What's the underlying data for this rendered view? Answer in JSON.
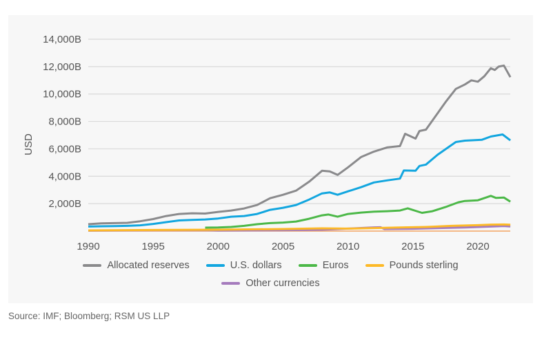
{
  "chart_data": {
    "type": "line",
    "xlabel": "",
    "ylabel": "USD",
    "xlim": [
      1990,
      2022.5
    ],
    "ylim": [
      0,
      14000
    ],
    "x_ticks": [
      "1990",
      "1995",
      "2000",
      "2005",
      "2010",
      "2015",
      "2020"
    ],
    "y_ticks": [
      "2,000B",
      "4,000B",
      "6,000B",
      "8,000B",
      "10,000B",
      "12,000B",
      "14,000B"
    ],
    "grid": true,
    "legend_position": "bottom",
    "series": [
      {
        "name": "Allocated reserves",
        "color": "#8a8a8c",
        "points": [
          [
            1990,
            500
          ],
          [
            1991,
            560
          ],
          [
            1992,
            580
          ],
          [
            1993,
            600
          ],
          [
            1994,
            720
          ],
          [
            1995,
            880
          ],
          [
            1996,
            1100
          ],
          [
            1997,
            1250
          ],
          [
            1998,
            1300
          ],
          [
            1999,
            1280
          ],
          [
            2000,
            1400
          ],
          [
            2001,
            1500
          ],
          [
            2002,
            1650
          ],
          [
            2003,
            1900
          ],
          [
            2004,
            2400
          ],
          [
            2005,
            2650
          ],
          [
            2006,
            2950
          ],
          [
            2007,
            3600
          ],
          [
            2008,
            4400
          ],
          [
            2008.6,
            4350
          ],
          [
            2009.2,
            4100
          ],
          [
            2010,
            4650
          ],
          [
            2011,
            5400
          ],
          [
            2012,
            5800
          ],
          [
            2013,
            6100
          ],
          [
            2014,
            6200
          ],
          [
            2014.4,
            7100
          ],
          [
            2015.2,
            6750
          ],
          [
            2015.5,
            7300
          ],
          [
            2016,
            7400
          ],
          [
            2016.8,
            8460
          ],
          [
            2017.5,
            9400
          ],
          [
            2018.3,
            10370
          ],
          [
            2019,
            10700
          ],
          [
            2019.5,
            11000
          ],
          [
            2020,
            10900
          ],
          [
            2020.5,
            11300
          ],
          [
            2021,
            11880
          ],
          [
            2021.3,
            11750
          ],
          [
            2021.6,
            12000
          ],
          [
            2022,
            12080
          ],
          [
            2022.5,
            11230
          ]
        ]
      },
      {
        "name": "U.S. dollars",
        "color": "#12a6df",
        "points": [
          [
            1990,
            330
          ],
          [
            1991,
            350
          ],
          [
            1992,
            360
          ],
          [
            1993,
            380
          ],
          [
            1994,
            420
          ],
          [
            1995,
            520
          ],
          [
            1996,
            650
          ],
          [
            1997,
            780
          ],
          [
            1998,
            820
          ],
          [
            1999,
            850
          ],
          [
            2000,
            920
          ],
          [
            2001,
            1050
          ],
          [
            2002,
            1100
          ],
          [
            2003,
            1250
          ],
          [
            2004,
            1550
          ],
          [
            2005,
            1700
          ],
          [
            2006,
            1900
          ],
          [
            2007,
            2300
          ],
          [
            2008,
            2750
          ],
          [
            2008.6,
            2820
          ],
          [
            2009.2,
            2650
          ],
          [
            2010,
            2900
          ],
          [
            2011,
            3200
          ],
          [
            2012,
            3550
          ],
          [
            2013,
            3700
          ],
          [
            2014,
            3830
          ],
          [
            2014.3,
            4420
          ],
          [
            2015.2,
            4400
          ],
          [
            2015.5,
            4750
          ],
          [
            2016,
            4850
          ],
          [
            2016.9,
            5570
          ],
          [
            2018.3,
            6500
          ],
          [
            2019,
            6600
          ],
          [
            2020.3,
            6660
          ],
          [
            2021,
            6900
          ],
          [
            2021.9,
            7050
          ],
          [
            2022.5,
            6620
          ]
        ]
      },
      {
        "name": "Euros",
        "color": "#4cb848",
        "points": [
          [
            1999,
            250
          ],
          [
            2000,
            260
          ],
          [
            2001,
            300
          ],
          [
            2002,
            380
          ],
          [
            2003,
            500
          ],
          [
            2004,
            580
          ],
          [
            2005,
            620
          ],
          [
            2006,
            700
          ],
          [
            2007,
            900
          ],
          [
            2008,
            1150
          ],
          [
            2008.5,
            1210
          ],
          [
            2009.2,
            1050
          ],
          [
            2010,
            1250
          ],
          [
            2011,
            1350
          ],
          [
            2012,
            1420
          ],
          [
            2013,
            1450
          ],
          [
            2014,
            1500
          ],
          [
            2014.6,
            1660
          ],
          [
            2015.7,
            1330
          ],
          [
            2016.5,
            1450
          ],
          [
            2017.5,
            1750
          ],
          [
            2018.5,
            2100
          ],
          [
            2019,
            2200
          ],
          [
            2020,
            2250
          ],
          [
            2021,
            2570
          ],
          [
            2021.4,
            2420
          ],
          [
            2022,
            2450
          ],
          [
            2022.5,
            2150
          ]
        ]
      },
      {
        "name": "Pounds sterling",
        "color": "#fdb927",
        "points": [
          [
            1990,
            50
          ],
          [
            1995,
            80
          ],
          [
            2000,
            100
          ],
          [
            2005,
            150
          ],
          [
            2008,
            200
          ],
          [
            2010,
            180
          ],
          [
            2012,
            220
          ],
          [
            2014,
            260
          ],
          [
            2016,
            300
          ],
          [
            2018,
            380
          ],
          [
            2020,
            430
          ],
          [
            2021,
            470
          ],
          [
            2022,
            480
          ],
          [
            2022.5,
            460
          ]
        ]
      },
      {
        "name": "Other currencies",
        "color": "#a57bbd",
        "points": [
          [
            1990,
            30
          ],
          [
            1995,
            60
          ],
          [
            1999,
            70
          ],
          [
            2000,
            40
          ],
          [
            2005,
            60
          ],
          [
            2008,
            100
          ],
          [
            2010,
            180
          ],
          [
            2012,
            270
          ],
          [
            2012.5,
            280
          ],
          [
            2012.8,
            150
          ],
          [
            2015,
            170
          ],
          [
            2017,
            220
          ],
          [
            2019,
            260
          ],
          [
            2021,
            330
          ],
          [
            2022,
            370
          ],
          [
            2022.5,
            340
          ]
        ]
      }
    ]
  },
  "source": "Source: IMF; Bloomberg; RSM US LLP"
}
